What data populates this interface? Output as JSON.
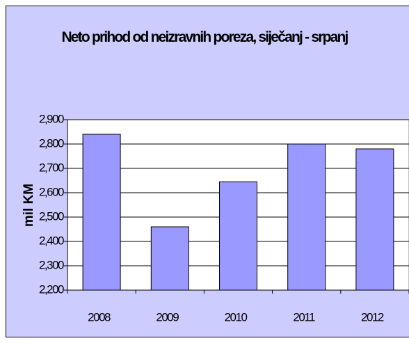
{
  "chart_data": {
    "type": "bar",
    "title": "Neto prihod od neizravnih poreza, siječanj - srpanj",
    "y_label": "mil KM",
    "categories": [
      "2008",
      "2009",
      "2010",
      "2011",
      "2012"
    ],
    "values": [
      2840,
      2460,
      2645,
      2800,
      2780
    ],
    "color": "#9999ff",
    "ylim": [
      2200,
      2900
    ],
    "yticks": [
      {
        "value": 2200,
        "label": "2,200"
      },
      {
        "value": 2300,
        "label": "2,300"
      },
      {
        "value": 2400,
        "label": "2,400"
      },
      {
        "value": 2500,
        "label": "2,500"
      },
      {
        "value": 2600,
        "label": "2,600"
      },
      {
        "value": 2700,
        "label": "2,700"
      },
      {
        "value": 2800,
        "label": "2,800"
      },
      {
        "value": 2900,
        "label": "2,900"
      }
    ],
    "grid": true
  }
}
